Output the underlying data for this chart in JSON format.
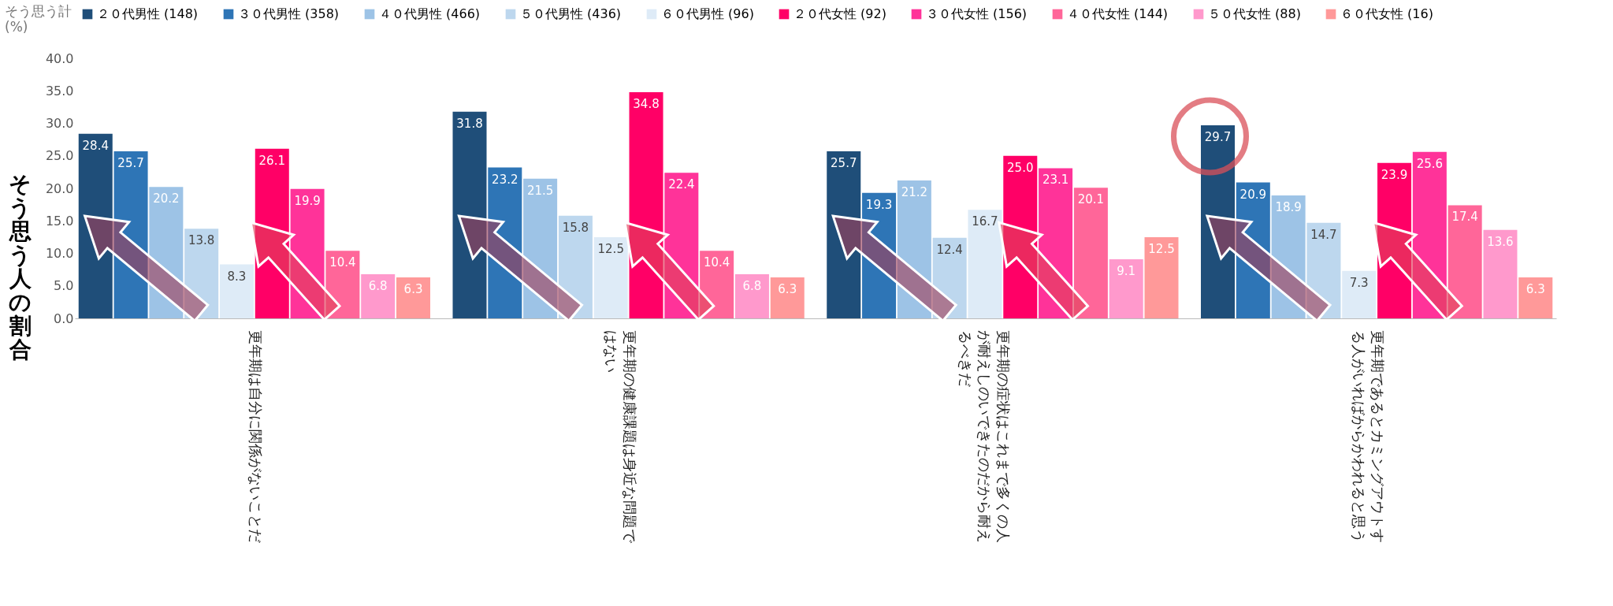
{
  "chart_data": {
    "type": "bar",
    "ylabel": "そう思う人の割合",
    "annotations": [
      "そう思う計 (%)"
    ],
    "categories": [
      "更年期は自分に関係がないことだ",
      "更年期の健康課題は身近な問題ではない",
      "更年期の症状はこれまで多くの人が耐えしのいできたのだから耐えるべきだ",
      "更年期であるとカミングアウトする人がいればからかわれると思う"
    ],
    "ylim": [
      0,
      40
    ],
    "yticks": [
      {
        "value": 0,
        "label": "0.0"
      },
      {
        "value": 5,
        "label": "5.0"
      },
      {
        "value": 10,
        "label": "10.0"
      },
      {
        "value": 15,
        "label": "15.0"
      },
      {
        "value": 20,
        "label": "20.0"
      },
      {
        "value": 25,
        "label": "25.0"
      },
      {
        "value": 30,
        "label": "30.0"
      },
      {
        "value": 35,
        "label": "35.0"
      },
      {
        "value": 40,
        "label": "40.0"
      }
    ],
    "grid": false,
    "legend": "top",
    "series": [
      {
        "name": "２０代男性 (148)",
        "color": "#1f4e79",
        "values": [
          28.4,
          31.8,
          25.7,
          29.7
        ],
        "value_labels": [
          "28.4",
          "31.8",
          "25.7",
          "29.7"
        ]
      },
      {
        "name": "３０代男性 (358)",
        "color": "#2e75b6",
        "values": [
          25.7,
          23.2,
          19.3,
          20.9
        ],
        "value_labels": [
          "25.7",
          "23.2",
          "19.3",
          "20.9"
        ]
      },
      {
        "name": "４０代男性 (466)",
        "color": "#9dc3e6",
        "values": [
          20.2,
          21.5,
          21.2,
          18.9
        ],
        "value_labels": [
          "20.2",
          "21.5",
          "21.2",
          "18.9"
        ]
      },
      {
        "name": "５０代男性 (436)",
        "color": "#bdd7ee",
        "values": [
          13.8,
          15.8,
          12.4,
          14.7
        ],
        "value_labels": [
          "13.8",
          "15.8",
          "12.4",
          "14.7"
        ]
      },
      {
        "name": "６０代男性 (96)",
        "color": "#deebf7",
        "values": [
          8.3,
          12.5,
          16.7,
          7.3
        ],
        "value_labels": [
          "8.3",
          "12.5",
          "16.7",
          "7.3"
        ]
      },
      {
        "name": "２０代女性 (92)",
        "color": "#ff0066",
        "values": [
          26.1,
          34.8,
          25.0,
          23.9
        ],
        "value_labels": [
          "26.1",
          "34.8",
          "25.0",
          "23.9"
        ]
      },
      {
        "name": "３０代女性 (156)",
        "color": "#ff3399",
        "values": [
          19.9,
          22.4,
          23.1,
          25.6
        ],
        "value_labels": [
          "19.9",
          "22.4",
          "23.1",
          "25.6"
        ]
      },
      {
        "name": "４０代女性 (144)",
        "color": "#ff6699",
        "values": [
          10.4,
          10.4,
          20.1,
          17.4
        ],
        "value_labels": [
          "10.4",
          "10.4",
          "20.1",
          "17.4"
        ]
      },
      {
        "name": "５０代女性 (88)",
        "color": "#ff99cc",
        "values": [
          6.8,
          6.8,
          9.1,
          13.6
        ],
        "value_labels": [
          "6.8",
          "6.8",
          "9.1",
          "13.6"
        ]
      },
      {
        "name": "６０代女性 (16)",
        "color": "#ff9999",
        "values": [
          6.3,
          6.3,
          12.5,
          6.3
        ],
        "value_labels": [
          "6.3",
          "6.3",
          "12.5",
          "6.3"
        ]
      }
    ]
  }
}
